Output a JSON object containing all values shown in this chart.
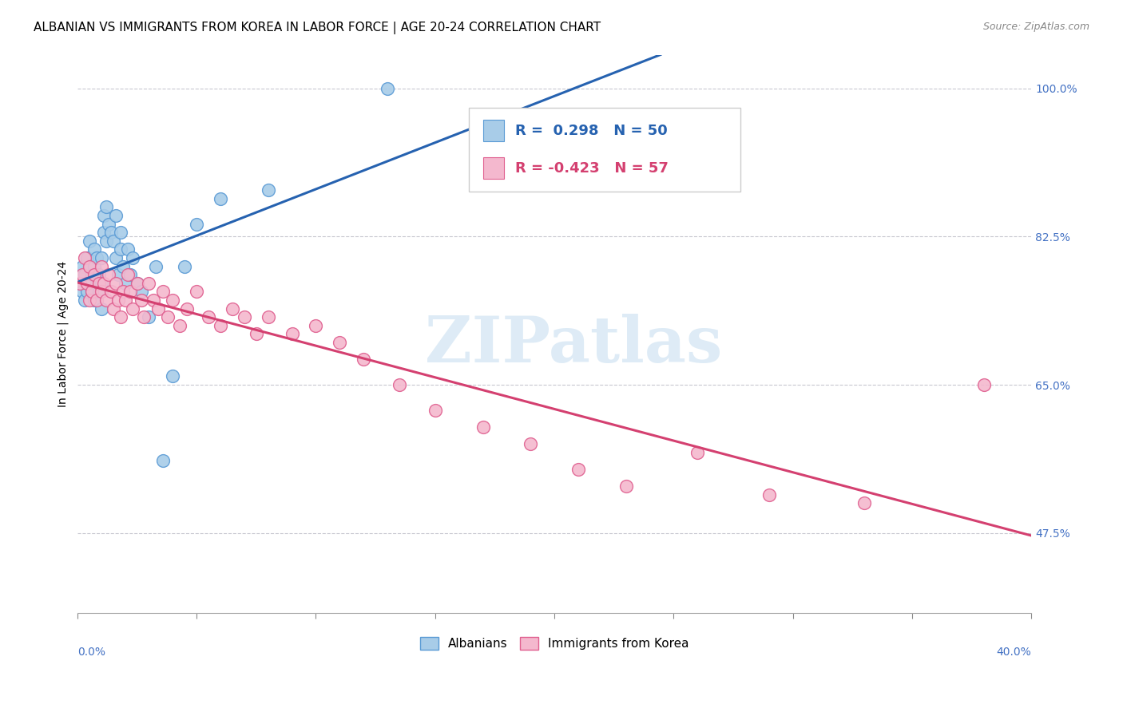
{
  "title": "ALBANIAN VS IMMIGRANTS FROM KOREA IN LABOR FORCE | AGE 20-24 CORRELATION CHART",
  "source": "Source: ZipAtlas.com",
  "ylabel": "In Labor Force | Age 20-24",
  "xmin": 0.0,
  "xmax": 0.4,
  "ymin": 0.38,
  "ymax": 1.04,
  "blue_color": "#a8cce8",
  "blue_edge_color": "#5b9bd5",
  "pink_color": "#f4b8ce",
  "pink_edge_color": "#e06090",
  "blue_line_color": "#2662b0",
  "pink_line_color": "#d44070",
  "ytick_positions": [
    0.475,
    0.65,
    0.825,
    1.0
  ],
  "ytick_labels": [
    "47.5%",
    "65.0%",
    "82.5%",
    "100.0%"
  ],
  "grid_color": "#c8c8d0",
  "legend_r_blue": "0.298",
  "legend_n_blue": "50",
  "legend_r_pink": "-0.423",
  "legend_n_pink": "57",
  "albanians_x": [
    0.001,
    0.002,
    0.002,
    0.003,
    0.003,
    0.004,
    0.004,
    0.005,
    0.005,
    0.005,
    0.006,
    0.006,
    0.007,
    0.007,
    0.007,
    0.008,
    0.008,
    0.009,
    0.009,
    0.01,
    0.01,
    0.01,
    0.011,
    0.011,
    0.012,
    0.012,
    0.013,
    0.014,
    0.015,
    0.016,
    0.016,
    0.017,
    0.018,
    0.018,
    0.019,
    0.02,
    0.021,
    0.022,
    0.023,
    0.025,
    0.027,
    0.03,
    0.033,
    0.036,
    0.04,
    0.045,
    0.05,
    0.06,
    0.08,
    0.13
  ],
  "albanians_y": [
    0.77,
    0.76,
    0.79,
    0.75,
    0.78,
    0.8,
    0.76,
    0.77,
    0.79,
    0.82,
    0.76,
    0.78,
    0.75,
    0.79,
    0.81,
    0.77,
    0.8,
    0.76,
    0.78,
    0.74,
    0.77,
    0.8,
    0.83,
    0.85,
    0.82,
    0.86,
    0.84,
    0.83,
    0.82,
    0.85,
    0.8,
    0.78,
    0.81,
    0.83,
    0.79,
    0.77,
    0.81,
    0.78,
    0.8,
    0.77,
    0.76,
    0.73,
    0.79,
    0.56,
    0.66,
    0.79,
    0.84,
    0.87,
    0.88,
    1.0
  ],
  "korea_x": [
    0.001,
    0.002,
    0.003,
    0.004,
    0.005,
    0.005,
    0.006,
    0.007,
    0.008,
    0.009,
    0.01,
    0.01,
    0.011,
    0.012,
    0.013,
    0.014,
    0.015,
    0.016,
    0.017,
    0.018,
    0.019,
    0.02,
    0.021,
    0.022,
    0.023,
    0.025,
    0.027,
    0.028,
    0.03,
    0.032,
    0.034,
    0.036,
    0.038,
    0.04,
    0.043,
    0.046,
    0.05,
    0.055,
    0.06,
    0.065,
    0.07,
    0.075,
    0.08,
    0.09,
    0.1,
    0.11,
    0.12,
    0.135,
    0.15,
    0.17,
    0.19,
    0.21,
    0.23,
    0.26,
    0.29,
    0.33,
    0.38
  ],
  "korea_y": [
    0.77,
    0.78,
    0.8,
    0.77,
    0.75,
    0.79,
    0.76,
    0.78,
    0.75,
    0.77,
    0.76,
    0.79,
    0.77,
    0.75,
    0.78,
    0.76,
    0.74,
    0.77,
    0.75,
    0.73,
    0.76,
    0.75,
    0.78,
    0.76,
    0.74,
    0.77,
    0.75,
    0.73,
    0.77,
    0.75,
    0.74,
    0.76,
    0.73,
    0.75,
    0.72,
    0.74,
    0.76,
    0.73,
    0.72,
    0.74,
    0.73,
    0.71,
    0.73,
    0.71,
    0.72,
    0.7,
    0.68,
    0.65,
    0.62,
    0.6,
    0.58,
    0.55,
    0.53,
    0.57,
    0.52,
    0.51,
    0.65
  ],
  "watermark_text": "ZIPatlas",
  "title_fontsize": 11,
  "label_fontsize": 10,
  "tick_fontsize": 10,
  "legend_fontsize": 13
}
